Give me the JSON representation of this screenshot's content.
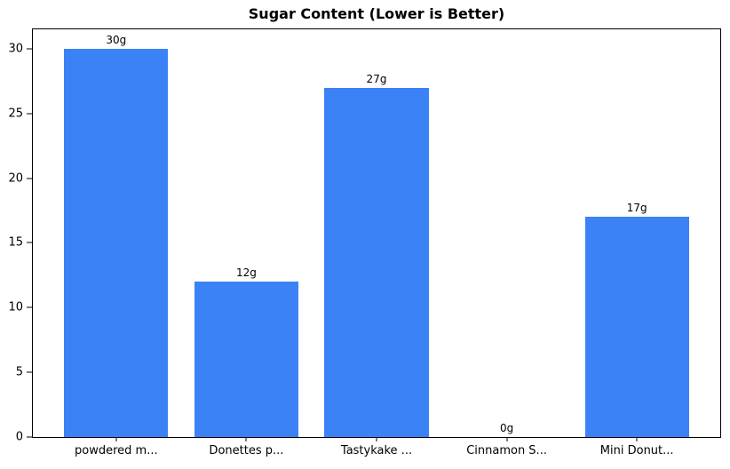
{
  "chart_data": {
    "type": "bar",
    "title": "Sugar Content (Lower is Better)",
    "categories": [
      "powdered m...",
      "Donettes p...",
      "Tastykake ...",
      "Cinnamon S...",
      "Mini Donut..."
    ],
    "values": [
      30,
      12,
      27,
      0,
      17
    ],
    "bar_labels": [
      "30g",
      "12g",
      "27g",
      "0g",
      "17g"
    ],
    "y_ticks": [
      0,
      5,
      10,
      15,
      20,
      25,
      30
    ],
    "ylim": [
      0,
      31.5
    ],
    "xlabel": "",
    "ylabel": "",
    "bar_color": "#3b82f6",
    "axis_color": "#000000",
    "background_color": "#ffffff",
    "grid": "off",
    "legend": "none"
  }
}
